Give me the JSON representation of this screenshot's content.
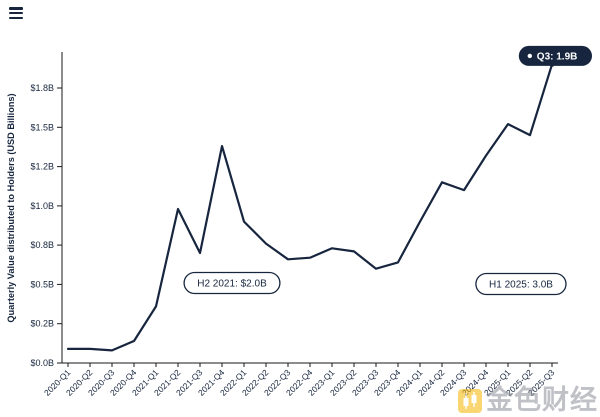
{
  "icons": {
    "top_left": "menu-icon",
    "watermark_logo": "gold-candlestick-logo-icon"
  },
  "watermark": {
    "text": "金色财经"
  },
  "colors": {
    "accent": "#17263e",
    "axis": "#1a1a1a",
    "watermark_gold": "#f7b500",
    "watermark_text": "#8b9099",
    "background": "#ffffff"
  },
  "chart_data": {
    "type": "line",
    "title": "",
    "xlabel": "",
    "ylabel": "Quarterly Value distributed to Holders (USD Billions)",
    "categories": [
      "2020-Q1",
      "2020-Q2",
      "2020-Q3",
      "2020-Q4",
      "2021-Q1",
      "2021-Q2",
      "2021-Q3",
      "2021-Q4",
      "2022-Q1",
      "2022-Q2",
      "2022-Q3",
      "2022-Q4",
      "2023-Q1",
      "2023-Q2",
      "2023-Q3",
      "2023-Q4",
      "2024-Q1",
      "2024-Q2",
      "2024-Q3",
      "2024-Q4",
      "2025-Q1",
      "2025-Q2",
      "2025-Q3"
    ],
    "values": [
      0.09,
      0.09,
      0.08,
      0.14,
      0.36,
      0.98,
      0.7,
      1.38,
      0.9,
      0.76,
      0.66,
      0.67,
      0.73,
      0.71,
      0.6,
      0.64,
      0.9,
      1.15,
      1.1,
      1.32,
      1.52,
      1.45,
      1.9
    ],
    "line_color": "#17263e",
    "ylim": [
      0,
      1.96
    ],
    "y_ticks": [
      {
        "value": 0,
        "label": "$0.0B"
      },
      {
        "value": 0.25,
        "label": "$0.2B"
      },
      {
        "value": 0.5,
        "label": "$0.5B"
      },
      {
        "value": 0.75,
        "label": "$0.8B"
      },
      {
        "value": 1.0,
        "label": "$1.0B"
      },
      {
        "value": 1.25,
        "label": "$1.2B"
      },
      {
        "value": 1.5,
        "label": "$1.5B"
      },
      {
        "value": 1.75,
        "label": "$1.8B"
      }
    ],
    "grid": false,
    "legend": "none",
    "annotations": [
      {
        "label": "H2 2021: $2.0B",
        "x": 232,
        "y": 283
      },
      {
        "label": "H1 2025: 3.0B",
        "x": 521,
        "y": 284
      }
    ],
    "end_label": "Q3: 1.9B"
  }
}
